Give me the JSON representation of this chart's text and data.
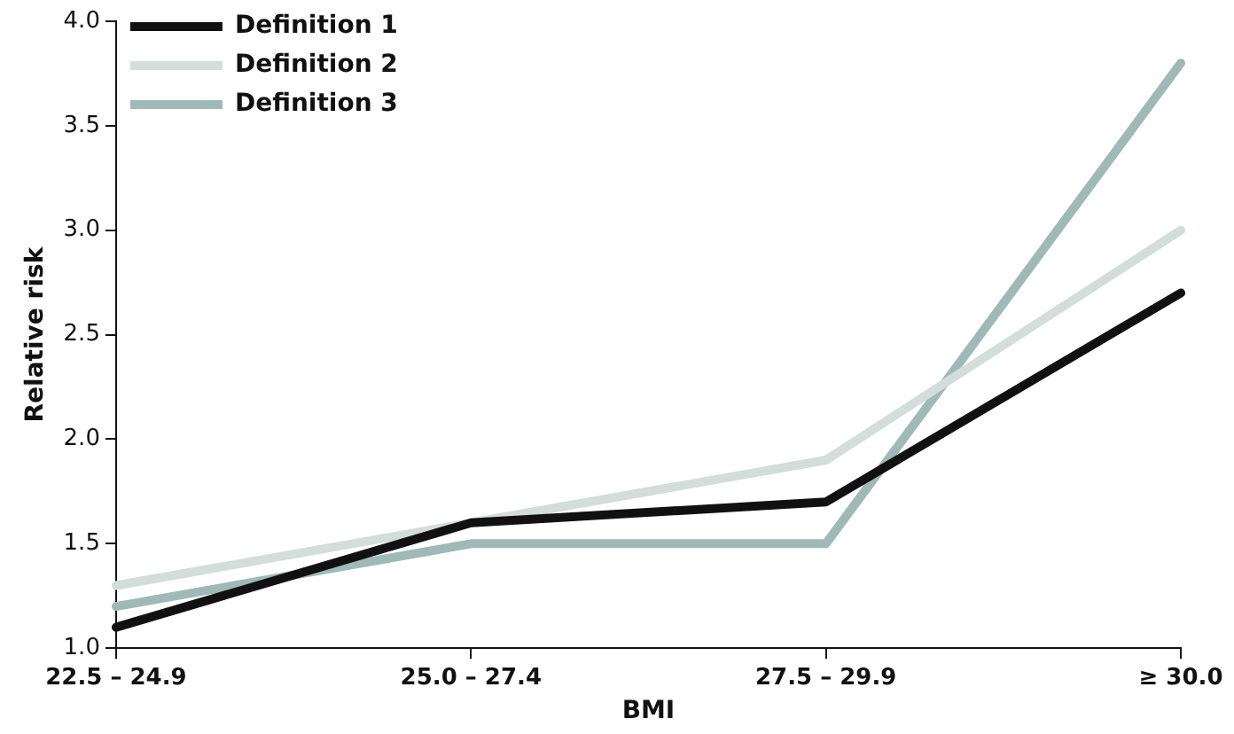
{
  "chart_data": {
    "type": "line",
    "xlabel": "BMI",
    "ylabel": "Relative risk",
    "categories": [
      "22.5 – 24.9",
      "25.0 – 27.4",
      "27.5 – 29.9",
      "≥ 30.0"
    ],
    "series": [
      {
        "name": "Definition 1",
        "color": "#111111",
        "values": [
          1.1,
          1.6,
          1.7,
          2.7
        ]
      },
      {
        "name": "Definition 2",
        "color": "#d3ddd9",
        "values": [
          1.3,
          1.6,
          1.9,
          3.0
        ]
      },
      {
        "name": "Definition 3",
        "color": "#9fb9b6",
        "values": [
          1.2,
          1.5,
          1.5,
          3.8
        ]
      }
    ],
    "ylim": [
      1,
      4
    ],
    "yticks": [
      {
        "value": 1,
        "label": "1.0"
      },
      1.5,
      {
        "value": 2,
        "label": "2.0"
      },
      2.5,
      {
        "value": 3,
        "label": "3.0"
      },
      3.5,
      {
        "value": 4,
        "label": "4.0"
      }
    ],
    "grid": false,
    "legend": "top left",
    "marker": "none",
    "line_style": "solid"
  }
}
